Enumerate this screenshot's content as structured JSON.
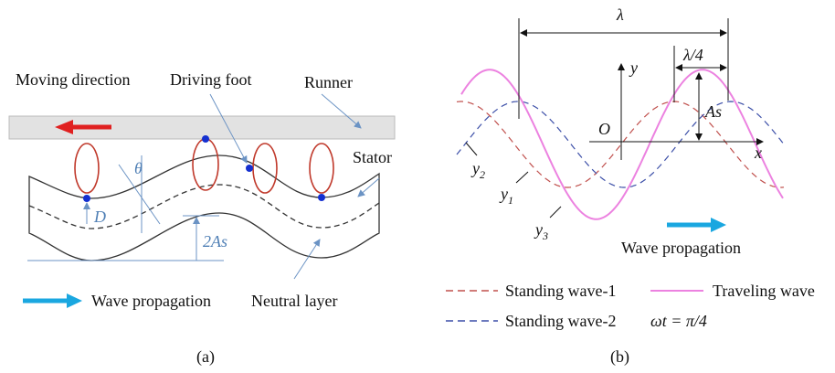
{
  "panel_a": {
    "moving_direction": "Moving direction",
    "driving_foot": "Driving foot",
    "runner": "Runner",
    "stator": "Stator",
    "theta": "θ",
    "d": "D",
    "two_as": "2As",
    "wave_propagation": "Wave propagation",
    "neutral_layer": "Neutral layer",
    "caption": "(a)"
  },
  "panel_b": {
    "lambda": "λ",
    "lambda_quarter": "λ/4",
    "y_axis": "y",
    "x_axis": "x",
    "origin": "O",
    "amplitude": "As",
    "y1": {
      "base": "y",
      "sub": "1"
    },
    "y2": {
      "base": "y",
      "sub": "2"
    },
    "y3": {
      "base": "y",
      "sub": "3"
    },
    "wave_propagation": "Wave propagation",
    "legend": {
      "standing_wave_1": "Standing wave-1",
      "traveling_wave": "Traveling wave",
      "standing_wave_2": "Standing wave-2",
      "phase": "ωt = π/4"
    },
    "caption": "(b)"
  }
}
